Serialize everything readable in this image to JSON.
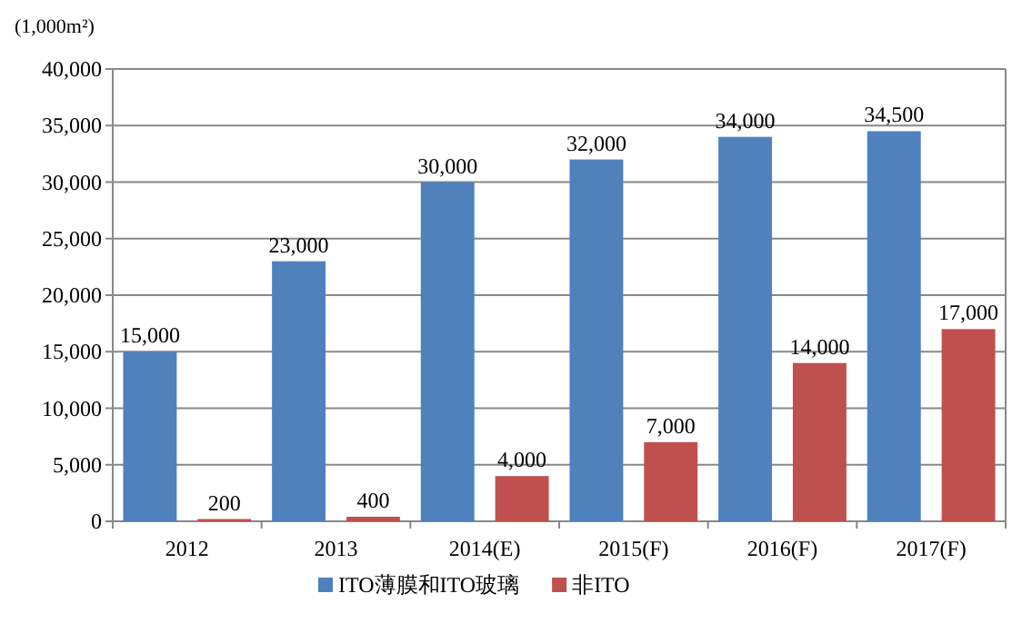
{
  "chart_data": {
    "type": "bar",
    "ylabel": "(1,000m²)",
    "categories": [
      "2012",
      "2013",
      "2014(E)",
      "2015(F)",
      "2016(F)",
      "2017(F)"
    ],
    "series": [
      {
        "name": "ITO薄膜和ITO玻璃",
        "color": "#4f81bd",
        "values": [
          15000,
          23000,
          30000,
          32000,
          34000,
          34500
        ],
        "value_labels": [
          "15,000",
          "23,000",
          "30,000",
          "32,000",
          "34,000",
          "34,500"
        ]
      },
      {
        "name": "非ITO",
        "color": "#c0504d",
        "values": [
          200,
          400,
          4000,
          7000,
          14000,
          17000
        ],
        "value_labels": [
          "200",
          "400",
          "4,000",
          "7,000",
          "14,000",
          "17,000"
        ]
      }
    ],
    "ylim": [
      0,
      40000
    ],
    "yticks": [
      {
        "value": 0,
        "label": "0"
      },
      {
        "value": 5000,
        "label": "5,000"
      },
      {
        "value": 10000,
        "label": "10,000"
      },
      {
        "value": 15000,
        "label": "15,000"
      },
      {
        "value": 20000,
        "label": "20,000"
      },
      {
        "value": 25000,
        "label": "25,000"
      },
      {
        "value": 30000,
        "label": "30,000"
      },
      {
        "value": 35000,
        "label": "35,000"
      },
      {
        "value": 40000,
        "label": "40,000"
      }
    ],
    "grid": "y",
    "legend": "bottom"
  }
}
